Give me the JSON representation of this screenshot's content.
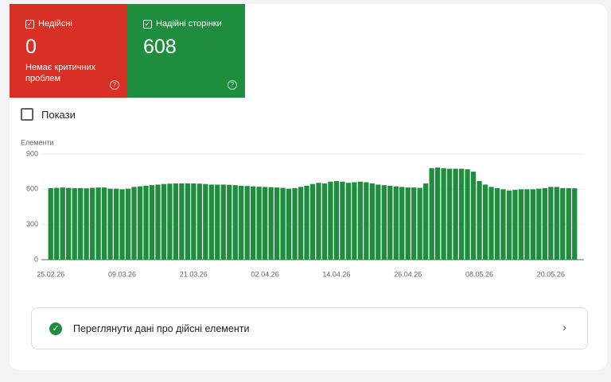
{
  "tiles": [
    {
      "label": "Недійсні",
      "value": 0,
      "note": "Немає критичних проблем"
    },
    {
      "label": "Надійні сторінки",
      "value": 608
    }
  ],
  "toggle": {
    "label": "Покази"
  },
  "chart_data": {
    "type": "bar",
    "y_label": "Елементи",
    "categories": [
      "25.02.26",
      null,
      null,
      null,
      null,
      null,
      null,
      null,
      null,
      null,
      null,
      null,
      "09.03.26",
      null,
      null,
      null,
      null,
      null,
      null,
      null,
      null,
      null,
      null,
      null,
      "21.03.26",
      null,
      null,
      null,
      null,
      null,
      null,
      null,
      null,
      null,
      null,
      null,
      "02.04.26",
      null,
      null,
      null,
      null,
      null,
      null,
      null,
      null,
      null,
      null,
      null,
      "14.04.26",
      null,
      null,
      null,
      null,
      null,
      null,
      null,
      null,
      null,
      null,
      null,
      "26.04.26",
      null,
      null,
      null,
      null,
      null,
      null,
      null,
      null,
      null,
      null,
      null,
      "08.05.26",
      null,
      null,
      null,
      null,
      null,
      null,
      null,
      null,
      null,
      null,
      null,
      "20.05.26",
      null,
      null,
      null,
      null
    ],
    "values": [
      610,
      612,
      615,
      612,
      610,
      610,
      608,
      612,
      615,
      615,
      605,
      605,
      600,
      605,
      620,
      625,
      630,
      635,
      640,
      645,
      648,
      650,
      650,
      650,
      650,
      648,
      645,
      640,
      640,
      640,
      638,
      635,
      630,
      628,
      625,
      622,
      620,
      618,
      615,
      612,
      605,
      610,
      620,
      630,
      645,
      655,
      650,
      665,
      670,
      665,
      655,
      660,
      665,
      660,
      650,
      640,
      635,
      630,
      625,
      620,
      615,
      615,
      612,
      650,
      780,
      785,
      780,
      775,
      775,
      775,
      770,
      750,
      670,
      640,
      620,
      610,
      600,
      590,
      595,
      600,
      600,
      600,
      605,
      610,
      620,
      620,
      610,
      610,
      608
    ],
    "color": "#1e8e3e",
    "ylim": [
      0,
      900
    ],
    "yticks": [
      0,
      300,
      600,
      900
    ],
    "grid": true
  },
  "link": {
    "label": "Переглянути дані про дійсні елементи"
  }
}
